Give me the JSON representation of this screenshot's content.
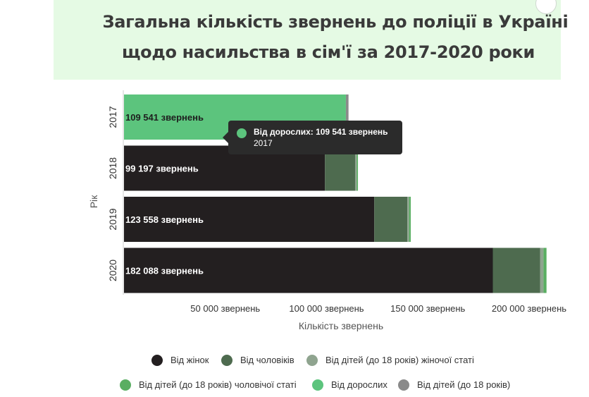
{
  "chart_data": {
    "type": "bar",
    "orientation": "horizontal",
    "stacked": true,
    "title_lines": [
      "Загальна кількість звернень до поліції в Україні",
      "щодо насильства в сім'ї за 2017-2020 роки"
    ],
    "xlabel": "Кількість звернень",
    "ylabel": "Рік",
    "categories": [
      "2017",
      "2018",
      "2019",
      "2020"
    ],
    "xlim": [
      0,
      210000
    ],
    "x_ticks": [
      {
        "value": 50000,
        "label": "50 000 звернень"
      },
      {
        "value": 100000,
        "label": "100 000 звернень"
      },
      {
        "value": 150000,
        "label": "150 000 звернень"
      },
      {
        "value": 200000,
        "label": "200 000 звернень"
      }
    ],
    "series": [
      {
        "name": "Від жінок",
        "color": "#231f20",
        "values": [
          0,
          99197,
          123558,
          182088
        ]
      },
      {
        "name": "Від чоловіків",
        "color": "#4e6b4f",
        "values": [
          0,
          15000,
          16300,
          23300
        ]
      },
      {
        "name": "Від дітей (до 18 років) жіночої статі",
        "color": "#8fa48f",
        "values": [
          0,
          700,
          900,
          1700
        ]
      },
      {
        "name": "Від дітей (до 18 років) чоловічої статі",
        "color": "#5aae62",
        "values": [
          0,
          600,
          800,
          1500
        ]
      },
      {
        "name": "Від дорослих",
        "color": "#5cc47d",
        "values": [
          109541,
          0,
          0,
          0
        ]
      },
      {
        "name": "Від дітей (до 18 років)",
        "color": "#8a8a8a",
        "values": [
          1300,
          0,
          0,
          0
        ]
      }
    ],
    "data_labels": [
      "109 541 звернень",
      "99 197 звернень",
      "123 558 звернень",
      "182 088 звернень"
    ],
    "tooltip": {
      "text": "Від дорослих: 109 541 звернень",
      "sub": "2017",
      "color": "#5cc47d"
    },
    "legend_position": "bottom",
    "grid": false
  }
}
